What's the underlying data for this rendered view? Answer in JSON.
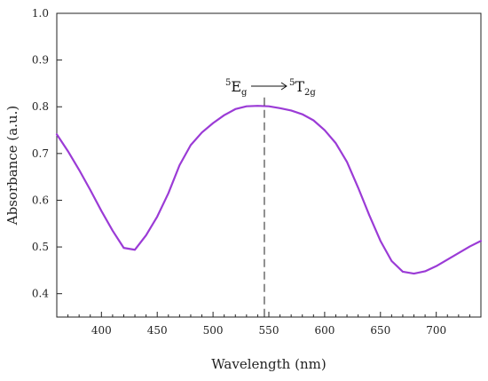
{
  "chart_data": {
    "type": "line",
    "title": "",
    "xlabel": "Wavelength (nm)",
    "ylabel": "Absorbance (a.u.)",
    "xlim": [
      360,
      740
    ],
    "ylim": [
      0.35,
      1.0
    ],
    "x_ticks": [
      400,
      450,
      500,
      550,
      600,
      650,
      700
    ],
    "y_ticks": [
      0.4,
      0.5,
      0.6,
      0.7,
      0.8,
      0.9,
      1.0
    ],
    "x_tick_labels": [
      "400",
      "450",
      "500",
      "550",
      "600",
      "650",
      "700"
    ],
    "y_tick_labels": [
      "0.4",
      "0.5",
      "0.6",
      "0.7",
      "0.8",
      "0.9",
      "1.0"
    ],
    "grid": false,
    "series": [
      {
        "color": "#9b3bd6",
        "x": [
          360,
          370,
          380,
          390,
          400,
          410,
          420,
          430,
          440,
          450,
          460,
          470,
          480,
          490,
          500,
          510,
          520,
          530,
          540,
          550,
          560,
          570,
          580,
          590,
          600,
          610,
          620,
          630,
          640,
          650,
          660,
          670,
          680,
          690,
          700,
          710,
          720,
          730,
          740
        ],
        "y": [
          0.741,
          0.705,
          0.665,
          0.622,
          0.577,
          0.535,
          0.498,
          0.494,
          0.525,
          0.565,
          0.615,
          0.675,
          0.718,
          0.745,
          0.765,
          0.782,
          0.795,
          0.801,
          0.802,
          0.801,
          0.797,
          0.792,
          0.784,
          0.771,
          0.75,
          0.722,
          0.682,
          0.627,
          0.568,
          0.513,
          0.47,
          0.447,
          0.443,
          0.448,
          0.459,
          0.473,
          0.487,
          0.501,
          0.513
        ]
      }
    ],
    "annotations": {
      "marker_x": 546,
      "marker_y_top": 0.82,
      "from_base": "E",
      "from_sup": "5",
      "from_sub": "g",
      "arrow": "→",
      "to_base": "T",
      "to_sup": "5",
      "to_sub": "2g"
    }
  }
}
